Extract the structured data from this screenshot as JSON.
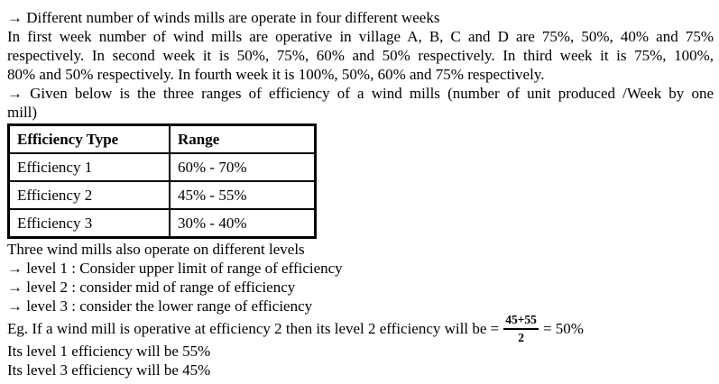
{
  "page": {
    "background": "#ffffff",
    "text_color": "#000000"
  },
  "intro": {
    "lines": [
      "→ Different number of winds mills are operate in four different weeks",
      "In first week number of wind mills are operative in village A, B, C and D are 75%, 50%, 40% and 75%",
      "respectively. In second week it is 50%, 75%, 60% and 50% respectively. In third week it is 75%, 100%,",
      "80% and 50% respectively. In fourth week it is 100%, 50%, 60% and 75% respectively.",
      "→ Given below is the three ranges of efficiency of a wind mills (number of unit produced /Week by one",
      "mill)"
    ]
  },
  "efficiency_table": {
    "headers": [
      "Efficiency Type",
      "Range"
    ],
    "rows": [
      {
        "type": "Efficiency 1",
        "range": "60% - 70%"
      },
      {
        "type": "Efficiency 2",
        "range": "45% - 55%"
      },
      {
        "type": "Efficiency 3",
        "range": "30% - 40%"
      }
    ]
  },
  "levels": {
    "lines": [
      "Three wind mills also operate on different levels",
      "→ level 1 : Consider upper limit of range of efficiency",
      "→ level 2 : consider mid of range of efficiency",
      "→ level 3 : consider the lower range of efficiency"
    ]
  },
  "example": {
    "prefix": "Eg. If a wind mill is operative at efficiency 2 then its level 2 efficiency will be =",
    "fraction": {
      "numerator": "45+55",
      "denominator": "2"
    },
    "suffix": "= 50%",
    "result_lines": [
      "Its level 1 efficiency will be 55%",
      "Its level 3 efficiency will be 45%"
    ]
  }
}
